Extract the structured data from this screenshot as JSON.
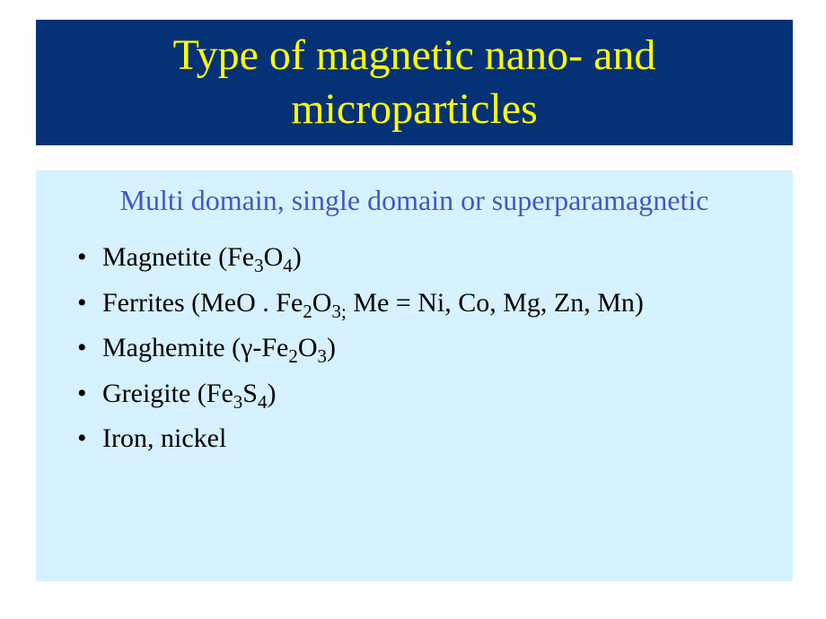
{
  "slide": {
    "background_color": "#fefefe",
    "title": {
      "text": "Type of magnetic nano- and microparticles",
      "font_size": 48,
      "font_family": "Georgia, 'Times New Roman', serif",
      "color": "#ffff00",
      "background_color": "#053276"
    },
    "content": {
      "background_color": "#d6f1ff",
      "subtitle": {
        "text": "Multi domain, single domain or superparamagnetic",
        "font_size": 32,
        "color": "#4159c2"
      },
      "bullets": {
        "font_size": 30,
        "color": "#000000",
        "items": [
          {
            "parts": [
              {
                "t": "Magnetite (Fe",
                "sub": false
              },
              {
                "t": "3",
                "sub": true
              },
              {
                "t": "O",
                "sub": false
              },
              {
                "t": "4",
                "sub": true
              },
              {
                "t": ")",
                "sub": false
              }
            ]
          },
          {
            "parts": [
              {
                "t": "Ferrites (MeO . Fe",
                "sub": false
              },
              {
                "t": "2",
                "sub": true
              },
              {
                "t": "O",
                "sub": false
              },
              {
                "t": "3;",
                "sub": true
              },
              {
                "t": " Me = Ni, Co, Mg, Zn, Mn)",
                "sub": false
              }
            ]
          },
          {
            "parts": [
              {
                "t": "Maghemite (γ-Fe",
                "sub": false
              },
              {
                "t": "2",
                "sub": true
              },
              {
                "t": "O",
                "sub": false
              },
              {
                "t": "3",
                "sub": true
              },
              {
                "t": ")",
                "sub": false
              }
            ]
          },
          {
            "parts": [
              {
                "t": "Greigite  (Fe",
                "sub": false
              },
              {
                "t": "3",
                "sub": true
              },
              {
                "t": "S",
                "sub": false
              },
              {
                "t": "4",
                "sub": true
              },
              {
                "t": ")",
                "sub": false
              }
            ]
          },
          {
            "parts": [
              {
                "t": "Iron, nickel",
                "sub": false
              }
            ]
          }
        ]
      }
    }
  }
}
